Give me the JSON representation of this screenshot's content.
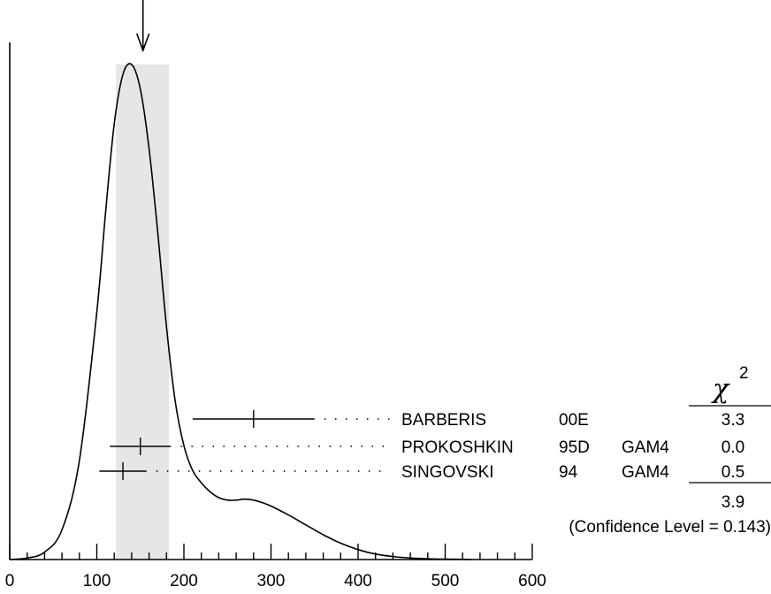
{
  "chart_data": {
    "type": "ideogram",
    "title": "",
    "xlabel": "",
    "ylabel": "",
    "xlim": [
      0,
      600
    ],
    "x_ticks": [
      0,
      100,
      200,
      300,
      400,
      500,
      600
    ],
    "x_minor_step": 20,
    "weighted_average": {
      "value": 153,
      "band": [
        122,
        183
      ]
    },
    "ideogram_curve": {
      "x": [
        0,
        20,
        40,
        60,
        80,
        100,
        110,
        120,
        130,
        140,
        150,
        160,
        170,
        180,
        190,
        200,
        210,
        220,
        230,
        240,
        250,
        260,
        270,
        280,
        290,
        300,
        320,
        340,
        360,
        380,
        400,
        420,
        440,
        460,
        480,
        500,
        530
      ],
      "y": [
        0,
        0.003,
        0.015,
        0.06,
        0.2,
        0.5,
        0.7,
        0.88,
        0.98,
        1.0,
        0.95,
        0.83,
        0.66,
        0.47,
        0.32,
        0.23,
        0.18,
        0.155,
        0.137,
        0.125,
        0.12,
        0.12,
        0.122,
        0.12,
        0.115,
        0.108,
        0.09,
        0.07,
        0.05,
        0.033,
        0.02,
        0.011,
        0.006,
        0.003,
        0.0015,
        0.0008,
        0.0002
      ]
    },
    "measurements": [
      {
        "author": "BARBERIS",
        "year": "00E",
        "tech": "",
        "value": 280,
        "err_low": 210,
        "err_high": 350,
        "chi2": "3.3"
      },
      {
        "author": "PROKOSHKIN",
        "year": "95D",
        "tech": "GAM4",
        "value": 150,
        "err_low": 115,
        "err_high": 185,
        "chi2": "0.0"
      },
      {
        "author": "SINGOVSKI",
        "year": "94",
        "tech": "GAM4",
        "value": 130,
        "err_low": 103,
        "err_high": 157,
        "chi2": "0.5"
      }
    ],
    "chi2_symbol": "χ",
    "chi2_superscript": "2",
    "chi2_total": "3.9",
    "confidence_level": "(Confidence Level = 0.143)"
  },
  "colors": {
    "band": "#e6e6e6",
    "ink": "#000000"
  }
}
